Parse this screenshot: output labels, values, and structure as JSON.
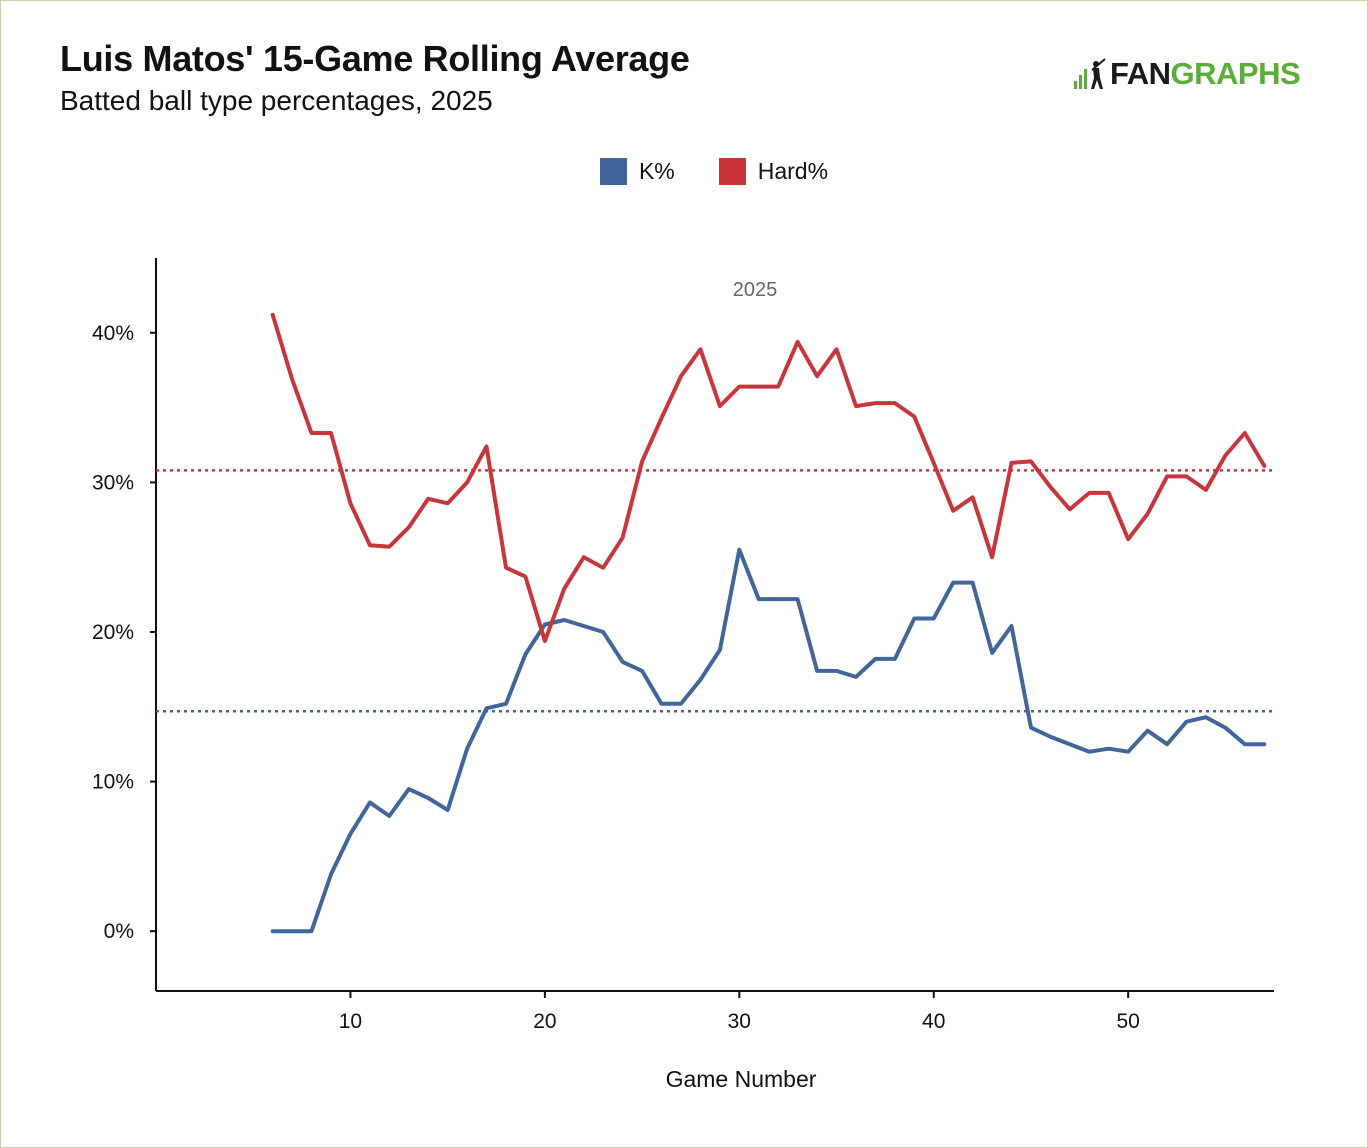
{
  "header": {
    "title": "Luis Matos' 15-Game Rolling Average",
    "subtitle": "Batted ball type percentages, 2025",
    "logo_left": "FAN",
    "logo_right": "GRAPHS"
  },
  "colors": {
    "k_series": "#41669b",
    "hard_series": "#c8363c",
    "logo_green": "#5cac3c",
    "axis": "#111111",
    "frame": "#c9cfb0"
  },
  "chart_data": {
    "type": "line",
    "title": "Luis Matos' 15-Game Rolling Average",
    "subtitle": "Batted ball type percentages, 2025",
    "annotation": "2025",
    "xlabel": "Game Number",
    "ylabel": "",
    "xlim": [
      0,
      57.5
    ],
    "ylim": [
      -4,
      45
    ],
    "x_ticks": [
      10,
      20,
      30,
      40,
      50
    ],
    "x_tick_labels": [
      "10",
      "20",
      "30",
      "40",
      "50"
    ],
    "y_ticks": [
      0,
      10,
      20,
      30,
      40
    ],
    "y_tick_labels": [
      "0%",
      "10%",
      "20%",
      "30%",
      "40%"
    ],
    "legend_position": "top-center",
    "grid": false,
    "series": [
      {
        "name": "K%",
        "color": "#41669b",
        "x": [
          6,
          7,
          8,
          9,
          10,
          11,
          12,
          13,
          14,
          15,
          16,
          17,
          18,
          19,
          20,
          21,
          22,
          23,
          24,
          25,
          26,
          27,
          28,
          29,
          30,
          31,
          32,
          33,
          34,
          35,
          36,
          37,
          38,
          39,
          40,
          41,
          42,
          43,
          44,
          45,
          46,
          47,
          48,
          49,
          50,
          51,
          52,
          53,
          54,
          55,
          56,
          57
        ],
        "values": [
          0,
          0,
          0,
          3.8,
          6.5,
          8.6,
          7.7,
          9.5,
          8.9,
          8.1,
          12.2,
          14.9,
          15.2,
          18.5,
          20.5,
          20.8,
          20.4,
          20.0,
          18.0,
          17.4,
          15.2,
          15.2,
          16.8,
          18.8,
          25.5,
          22.2,
          22.2,
          22.2,
          17.4,
          17.4,
          17.0,
          18.2,
          18.2,
          20.9,
          20.9,
          23.3,
          23.3,
          18.6,
          20.4,
          13.6,
          13.0,
          12.5,
          12.0,
          12.2,
          12.0,
          13.4,
          12.5,
          14.0,
          14.3,
          13.6,
          12.5,
          12.5
        ],
        "average": 14.7
      },
      {
        "name": "Hard%",
        "color": "#c8363c",
        "x": [
          6,
          7,
          8,
          9,
          10,
          11,
          12,
          13,
          14,
          15,
          16,
          17,
          18,
          19,
          20,
          21,
          22,
          23,
          24,
          25,
          26,
          27,
          28,
          29,
          30,
          31,
          32,
          33,
          34,
          35,
          36,
          37,
          38,
          39,
          40,
          41,
          42,
          43,
          44,
          45,
          46,
          47,
          48,
          49,
          50,
          51,
          52,
          53,
          54,
          55,
          56,
          57
        ],
        "values": [
          41.2,
          36.9,
          33.3,
          33.3,
          28.6,
          25.8,
          25.7,
          27.0,
          28.9,
          28.6,
          30.0,
          32.4,
          24.3,
          23.7,
          19.4,
          22.9,
          25.0,
          24.3,
          26.3,
          31.4,
          34.3,
          37.1,
          38.9,
          35.1,
          36.4,
          36.4,
          36.4,
          39.4,
          37.1,
          38.9,
          35.1,
          35.3,
          35.3,
          34.4,
          31.3,
          28.1,
          29.0,
          25.0,
          31.3,
          31.4,
          29.7,
          28.2,
          29.3,
          29.3,
          26.2,
          27.9,
          30.4,
          30.4,
          29.5,
          31.8,
          33.3,
          31.1
        ],
        "average": 30.8
      }
    ]
  }
}
